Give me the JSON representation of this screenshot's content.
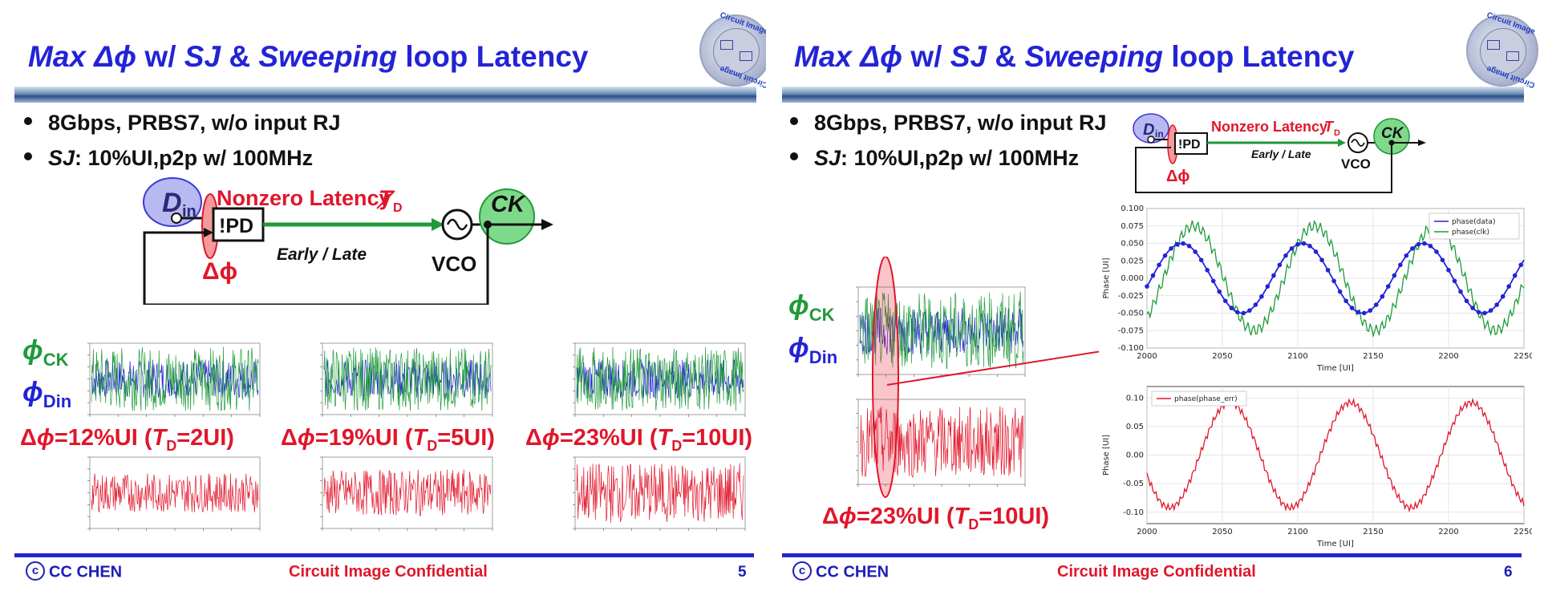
{
  "slides": [
    {
      "title": {
        "p1": "Max",
        "p2": "Δϕ",
        "p3": "w/",
        "p4": "SJ",
        "p5": "&",
        "p6": "Sweeping",
        "p7": "loop Latency"
      },
      "bullets": [
        {
          "strong_italic": "",
          "text": "8Gbps, PRBS7, w/o input RJ"
        },
        {
          "strong_italic": "SJ",
          "text": ": 10%UI,p2p w/ 100MHz"
        }
      ],
      "diagram": {
        "din": "D",
        "din_sub": "in",
        "pd": "!PD",
        "latency": "Nonzero Latency",
        "td": "T",
        "td_sub": "D",
        "early_late": "Early / Late",
        "vco": "VCO",
        "ck": "CK",
        "dphi": "Δϕ"
      },
      "phi_ck": "ϕ",
      "phi_ck_sub": "CK",
      "phi_din": "ϕ",
      "phi_din_sub": "Din",
      "results": [
        {
          "pre": "Δ",
          "phi": "ϕ",
          "val": "=12%UI (",
          "t": "T",
          "sub": "D",
          "post": "=2UI)"
        },
        {
          "pre": "Δ",
          "phi": "ϕ",
          "val": "=19%UI (",
          "t": "T",
          "sub": "D",
          "post": "=5UI)"
        },
        {
          "pre": "Δ",
          "phi": "ϕ",
          "val": "=23%UI (",
          "t": "T",
          "sub": "D",
          "post": "=10UI)"
        }
      ],
      "footer": {
        "author": "CC CHEN",
        "copy": "c",
        "confidential": "Circuit Image Confidential",
        "page": "5"
      }
    },
    {
      "title": {
        "p1": "Max",
        "p2": "Δϕ",
        "p3": "w/",
        "p4": "SJ",
        "p5": "&",
        "p6": "Sweeping",
        "p7": "loop Latency"
      },
      "bullets": [
        {
          "strong_italic": "",
          "text": "8Gbps, PRBS7, w/o input RJ"
        },
        {
          "strong_italic": "SJ",
          "text": ": 10%UI,p2p w/ 100MHz"
        }
      ],
      "diagram": {
        "din": "D",
        "din_sub": "in",
        "pd": "!PD",
        "latency": "Nonzero Latency",
        "td": "T",
        "td_sub": "D",
        "early_late": "Early / Late",
        "vco": "VCO",
        "ck": "CK",
        "dphi": "Δϕ"
      },
      "phi_ck": "ϕ",
      "phi_ck_sub": "CK",
      "phi_din": "ϕ",
      "phi_din_sub": "Din",
      "results": [
        {
          "pre": "Δ",
          "phi": "ϕ",
          "val": "=23%UI (",
          "t": "T",
          "sub": "D",
          "post": "=10UI)"
        }
      ],
      "footer": {
        "author": "CC CHEN",
        "copy": "c",
        "confidential": "Circuit Image Confidential",
        "page": "6"
      }
    }
  ],
  "logo": {
    "top_text": "Circuit Image",
    "bottom_text": "Circuit Image"
  },
  "colors": {
    "title": "#2323d6",
    "red": "#e0162a",
    "green": "#1f9a3a",
    "blue": "#2323d6"
  },
  "chart_data": [
    {
      "type": "line",
      "title": "",
      "series": [
        {
          "name": "phase(data)",
          "color": "#2323d6"
        },
        {
          "name": "phase(clk)",
          "color": "#1f9a3a"
        }
      ],
      "xlabel": "Time [UI]",
      "ylabel": "Phase [UI]",
      "xlim": [
        2000,
        2250
      ],
      "ylim": [
        -0.1,
        0.1
      ],
      "xticks": [
        2000,
        2050,
        2100,
        2150,
        2200,
        2250
      ],
      "yticks": [
        -0.1,
        -0.075,
        -0.05,
        -0.025,
        0.0,
        0.025,
        0.05,
        0.075,
        0.1
      ],
      "xtick_labels": [
        "2000",
        "2050",
        "2100",
        "2150",
        "2200",
        "2250"
      ],
      "ytick_labels": [
        "-0.100",
        "-0.075",
        "-0.050",
        "-0.025",
        "0.000",
        "0.025",
        "0.050",
        "0.075",
        "0.100"
      ],
      "legend": "top-right",
      "sj_period_ui": 80,
      "data_amplitude": 0.05,
      "clk_amplitude": 0.075
    },
    {
      "type": "line",
      "series": [
        {
          "name": "phase(phase_err)",
          "color": "#e0162a"
        }
      ],
      "xlabel": "Time [UI]",
      "ylabel": "Phase [UI]",
      "xlim": [
        2000,
        2250
      ],
      "ylim": [
        -0.12,
        0.12
      ],
      "xticks": [
        2000,
        2050,
        2100,
        2150,
        2200,
        2250
      ],
      "yticks": [
        -0.1,
        -0.05,
        0.0,
        0.05,
        0.1
      ],
      "xtick_labels": [
        "2000",
        "2050",
        "2100",
        "2150",
        "2200",
        "2250"
      ],
      "ytick_labels": [
        "-0.10",
        "-0.05",
        "0.00",
        "0.05",
        "0.10"
      ],
      "legend": "top-left",
      "err_amplitude": 0.1
    }
  ]
}
